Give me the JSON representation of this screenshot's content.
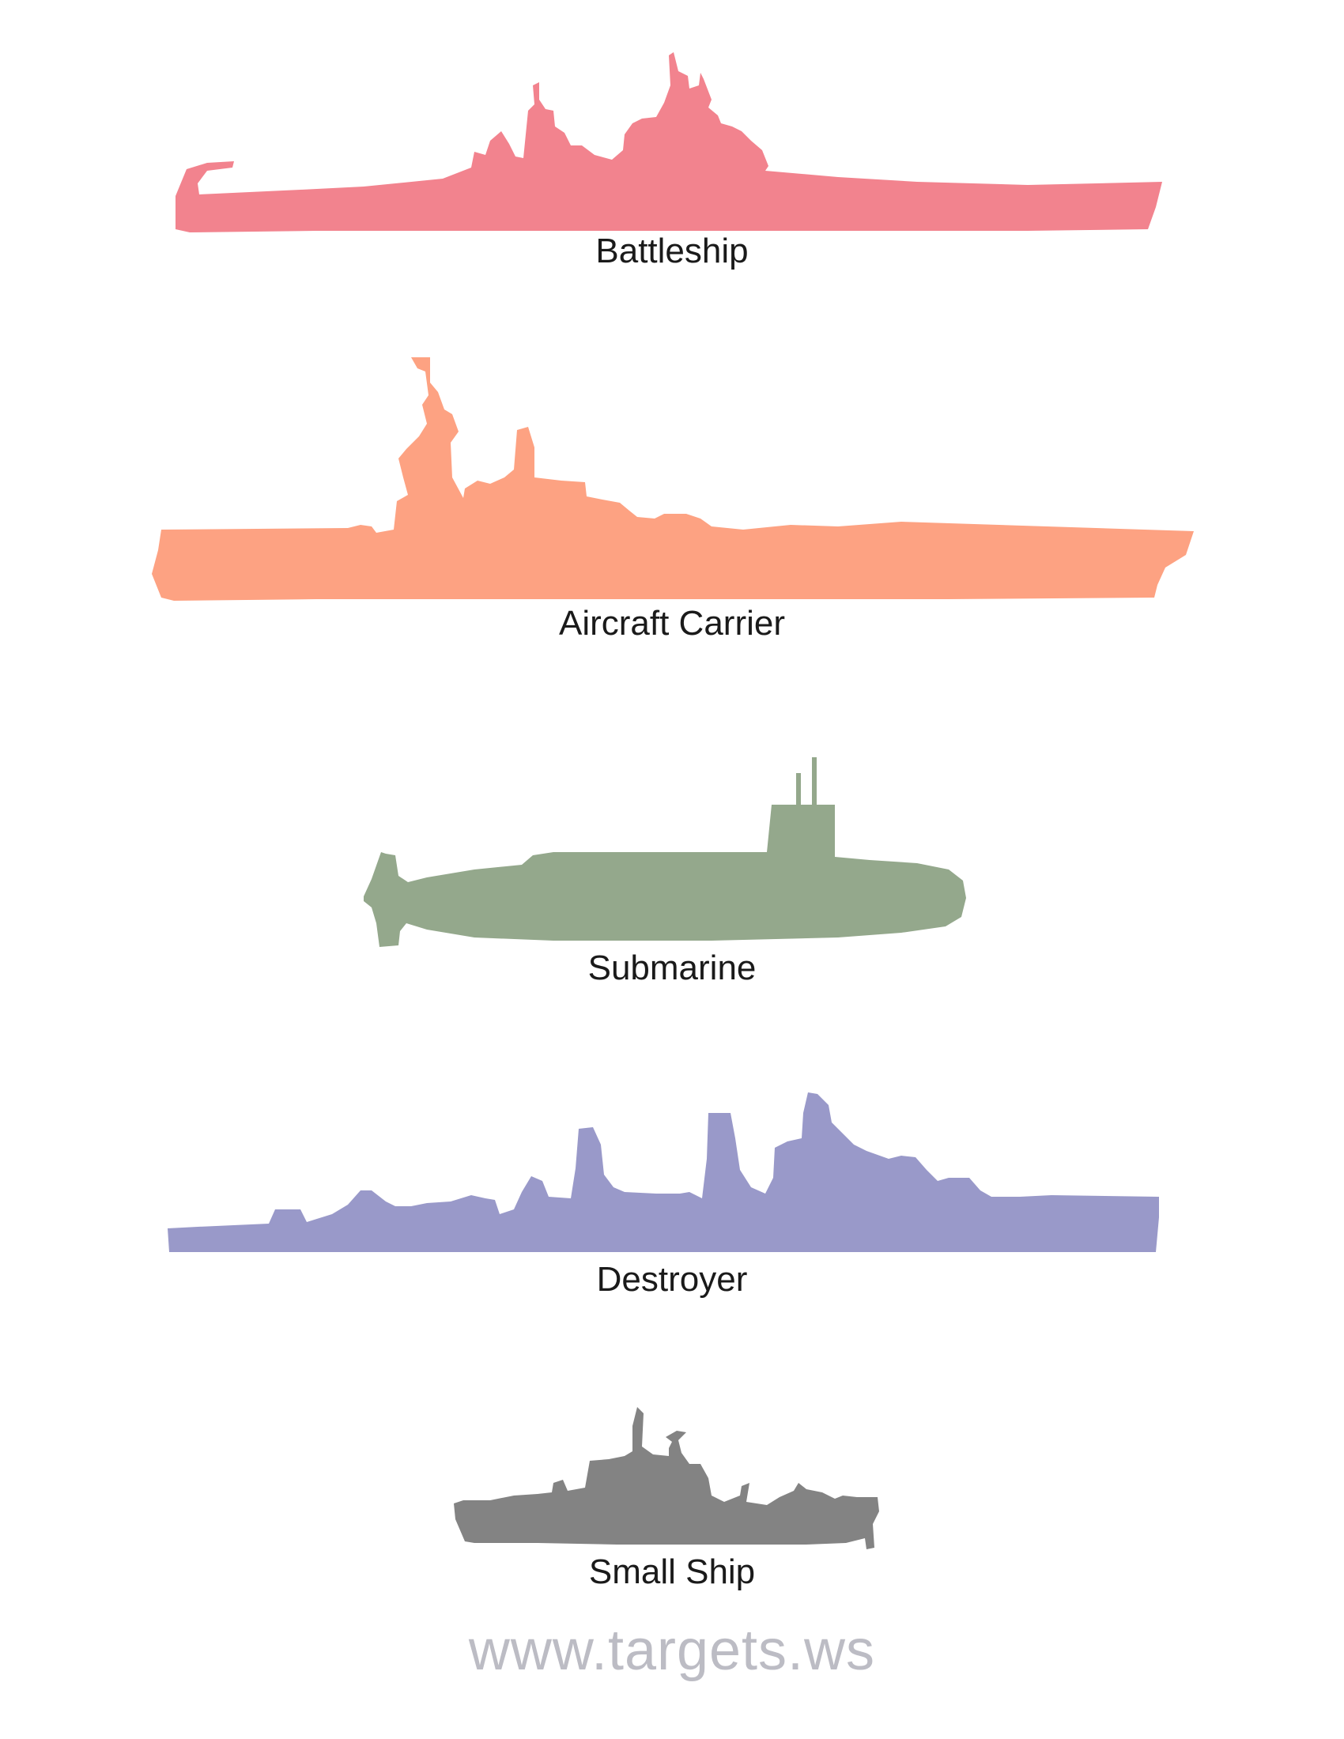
{
  "colors": {
    "battleship": "#f2838e",
    "aircraft_carrier": "#fda282",
    "submarine": "#94a88c",
    "destroyer": "#9999c9",
    "small_ship": "#838383",
    "watermark": "#bcbcc4"
  },
  "ships": [
    {
      "label": "Battleship"
    },
    {
      "label": "Aircraft Carrier"
    },
    {
      "label": "Submarine"
    },
    {
      "label": "Destroyer"
    },
    {
      "label": "Small Ship"
    }
  ],
  "watermark": "www.targets.ws"
}
